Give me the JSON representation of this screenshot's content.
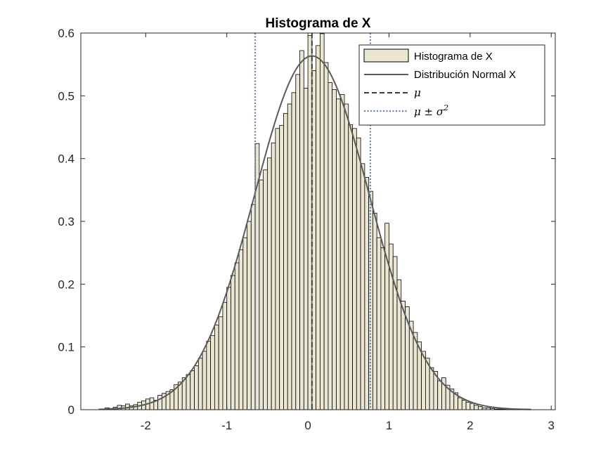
{
  "chart_data": {
    "type": "bar",
    "title": "Histograma de X",
    "xlabel": "",
    "ylabel": "",
    "xlim": [
      -2.8,
      3.05
    ],
    "ylim": [
      0,
      0.6
    ],
    "xticks": [
      -2,
      -1,
      0,
      1,
      2,
      3
    ],
    "xtick_labels": [
      "-2",
      "-1",
      "0",
      "1",
      "2",
      "3"
    ],
    "yticks": [
      0,
      0.1,
      0.2,
      0.3,
      0.4,
      0.5,
      0.6
    ],
    "ytick_labels": [
      "0",
      "0.1",
      "0.2",
      "0.3",
      "0.4",
      "0.5",
      "0.6"
    ],
    "grid": false,
    "legend_position": "top-right",
    "histogram": {
      "name": "Histograma de X",
      "bin_start": -2.55,
      "bin_width": 0.05,
      "values": [
        0.001,
        0.003,
        0.002,
        0.004,
        0.007,
        0.006,
        0.009,
        0.006,
        0.008,
        0.012,
        0.014,
        0.017,
        0.019,
        0.015,
        0.023,
        0.026,
        0.029,
        0.032,
        0.04,
        0.044,
        0.051,
        0.056,
        0.062,
        0.07,
        0.082,
        0.093,
        0.109,
        0.118,
        0.135,
        0.148,
        0.171,
        0.195,
        0.214,
        0.234,
        0.255,
        0.274,
        0.3,
        0.327,
        0.424,
        0.366,
        0.382,
        0.401,
        0.425,
        0.448,
        0.453,
        0.472,
        0.487,
        0.505,
        0.534,
        0.572,
        0.512,
        0.596,
        0.54,
        0.58,
        0.599,
        0.553,
        0.521,
        0.51,
        0.495,
        0.502,
        0.487,
        0.454,
        0.448,
        0.433,
        0.392,
        0.37,
        0.348,
        0.313,
        0.274,
        0.258,
        0.297,
        0.264,
        0.244,
        0.207,
        0.173,
        0.164,
        0.141,
        0.123,
        0.108,
        0.093,
        0.082,
        0.067,
        0.061,
        0.046,
        0.051,
        0.039,
        0.033,
        0.027,
        0.019,
        0.015,
        0.012,
        0.01,
        0.007,
        0.005,
        0.003,
        0.003,
        0.002,
        0.001,
        0.001,
        0.001,
        0.0,
        0.001,
        0.0,
        0.001,
        0.0,
        0.0
      ],
      "fill_color": "#EAE6D2",
      "edge_color": "#000000"
    },
    "normal_curve": {
      "name": "Distribución Normal X",
      "mean": 0.05,
      "sd": 0.708,
      "color": "#5A5A5A"
    },
    "mean_line": {
      "name": "μ",
      "x": 0.05,
      "color": "#3C3C3C"
    },
    "sigma_lines": {
      "name": "μ ± σ",
      "name_superscript": "2",
      "x": [
        -0.65,
        0.77
      ],
      "color": "#6A84A6"
    }
  }
}
